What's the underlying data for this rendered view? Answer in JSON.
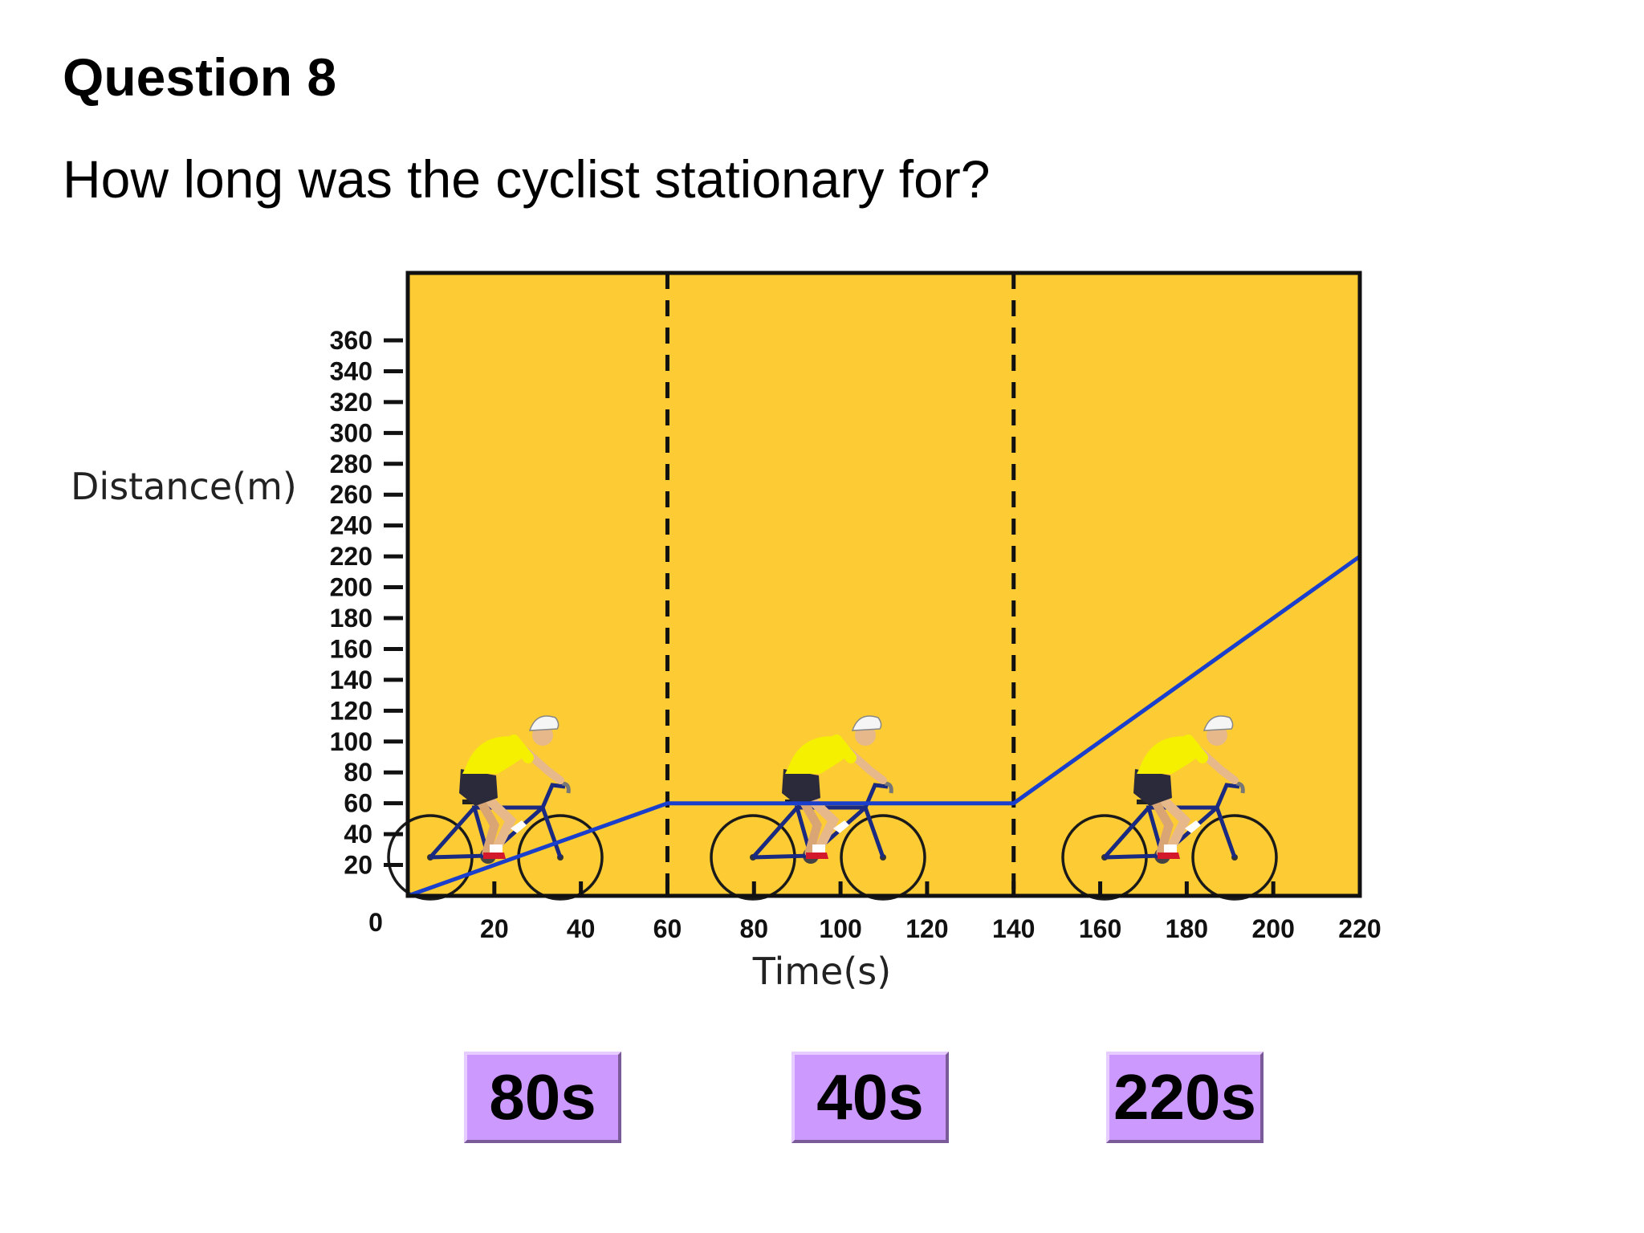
{
  "question": {
    "title": "Question 8",
    "text": "How long was the cyclist stationary for?"
  },
  "answers": [
    {
      "label": "80s"
    },
    {
      "label": "40s"
    },
    {
      "label": "220s"
    }
  ],
  "colors": {
    "plot_background": "#fdcb33",
    "line": "#1a3fcc",
    "button": "#cc99ff"
  },
  "chart_data": {
    "type": "line",
    "xlabel": "Time(s)",
    "ylabel": "Distance(m)",
    "xlim": [
      0,
      220
    ],
    "ylim": [
      0,
      380
    ],
    "x_ticks": [
      20,
      40,
      60,
      80,
      100,
      120,
      140,
      160,
      180,
      200,
      220
    ],
    "y_ticks": [
      20,
      40,
      60,
      80,
      100,
      120,
      140,
      160,
      180,
      200,
      220,
      240,
      260,
      280,
      300,
      320,
      340,
      360
    ],
    "origin_label": "0",
    "grid": false,
    "dashed_verticals_x": [
      60,
      140
    ],
    "series": [
      {
        "x": [
          0,
          60,
          140,
          220
        ],
        "y": [
          0,
          60,
          60,
          220
        ]
      }
    ],
    "decorations": [
      "cyclist-icon",
      "cyclist-icon",
      "cyclist-icon"
    ]
  }
}
